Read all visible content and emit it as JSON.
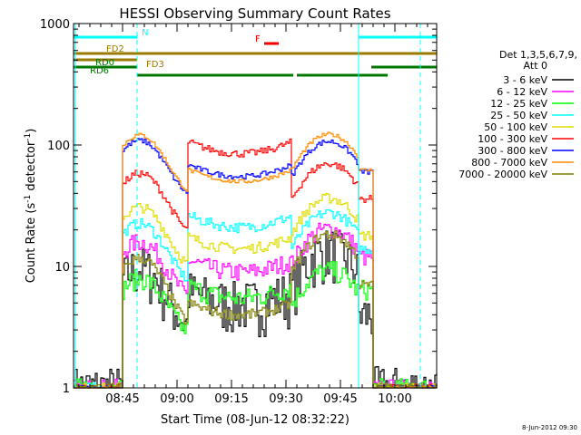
{
  "chart_data": {
    "type": "line",
    "title": "HESSI Observing Summary Count Rates",
    "xlabel": "Start Time (08-Jun-12 08:32:22)",
    "ylabel_parts": [
      "Count Rate (s",
      "-1",
      " detector",
      "-1",
      ")"
    ],
    "y_scale": "log",
    "ylim": [
      1,
      1000
    ],
    "y_ticks": [
      {
        "value": 1,
        "label": "1"
      },
      {
        "value": 10,
        "label": "10"
      },
      {
        "value": 100,
        "label": "100"
      },
      {
        "value": 1000,
        "label": "1000"
      }
    ],
    "xlim_minutes": [
      0,
      100
    ],
    "x_ticks": [
      {
        "minute": 13.5,
        "label": "08:45"
      },
      {
        "minute": 28.5,
        "label": "09:00"
      },
      {
        "minute": 43.5,
        "label": "09:15"
      },
      {
        "minute": 58.5,
        "label": "09:30"
      },
      {
        "minute": 73.5,
        "label": "09:45"
      },
      {
        "minute": 88.5,
        "label": "10:00"
      }
    ],
    "timestamp": "8-Jun-2012 09:30",
    "legend": {
      "title_lines": [
        "Det 1,3,5,6,7,9,",
        "Att 0"
      ],
      "placement": "right"
    },
    "series": [
      {
        "name": "3 - 6 keV",
        "color": "#000000",
        "levels": [
          1,
          7,
          5,
          5,
          8,
          13,
          4
        ],
        "noise": 0.5
      },
      {
        "name": "6 - 12 keV",
        "color": "#ff00ff",
        "levels": [
          1,
          11,
          9,
          9,
          9,
          18,
          12
        ],
        "noise": 0.18
      },
      {
        "name": "12 - 25 keV",
        "color": "#00ff00",
        "levels": [
          1,
          5.5,
          4.5,
          5.5,
          6,
          8,
          6.5
        ],
        "noise": 0.2
      },
      {
        "name": "25 - 50 keV",
        "color": "#00ffff",
        "levels": [
          1,
          16,
          12,
          21,
          21,
          25,
          14
        ],
        "noise": 0.1
      },
      {
        "name": "50 - 100 keV",
        "color": "#dddd00",
        "levels": [
          1,
          22,
          16,
          14,
          16,
          33,
          18
        ],
        "noise": 0.1
      },
      {
        "name": "100 - 300 keV",
        "color": "#ff0000",
        "levels": [
          1,
          42,
          30,
          85,
          100,
          63,
          36
        ],
        "noise": 0.07
      },
      {
        "name": "300 - 800 keV",
        "color": "#0000ff",
        "levels": [
          1,
          75,
          62,
          55,
          70,
          95,
          60
        ],
        "noise": 0.05
      },
      {
        "name": "800 - 7000 keV",
        "color": "#ff8c00",
        "levels": [
          1,
          85,
          65,
          50,
          62,
          110,
          62
        ],
        "noise": 0.04
      },
      {
        "name": "7000 - 20000 keV",
        "color": "#808000",
        "levels": [
          1,
          9,
          5,
          4,
          5,
          17,
          7
        ],
        "noise": 0.1
      }
    ],
    "segment_breaks_minutes": [
      13.5,
      31.5,
      60.0,
      78.5,
      82.0
    ],
    "flags": [
      {
        "label": "N",
        "color": "#00ffff",
        "segments": [
          [
            0,
            17.5
          ],
          [
            78.5,
            100
          ]
        ],
        "level": 0
      },
      {
        "label": "F",
        "color": "#ee0000",
        "segments": [
          [
            52.5,
            56.5
          ]
        ],
        "level": 1
      },
      {
        "label": "FD2",
        "color": "#9a7a00",
        "segments": [
          [
            0,
            100
          ]
        ],
        "level": 2
      },
      {
        "label": "FD3",
        "color": "#9a7a00",
        "segments": [
          [
            0,
            17.5
          ]
        ],
        "level": 3
      },
      {
        "label": "RD0",
        "color": "#007700",
        "segments": [
          [
            0,
            17.5
          ],
          [
            82,
            100
          ]
        ],
        "level": 4
      },
      {
        "label": "RD6",
        "color": "#007700",
        "segments": [
          [
            17.5,
            33
          ],
          [
            33,
            60.5
          ],
          [
            61.5,
            86.5
          ]
        ],
        "level": 5
      }
    ]
  }
}
